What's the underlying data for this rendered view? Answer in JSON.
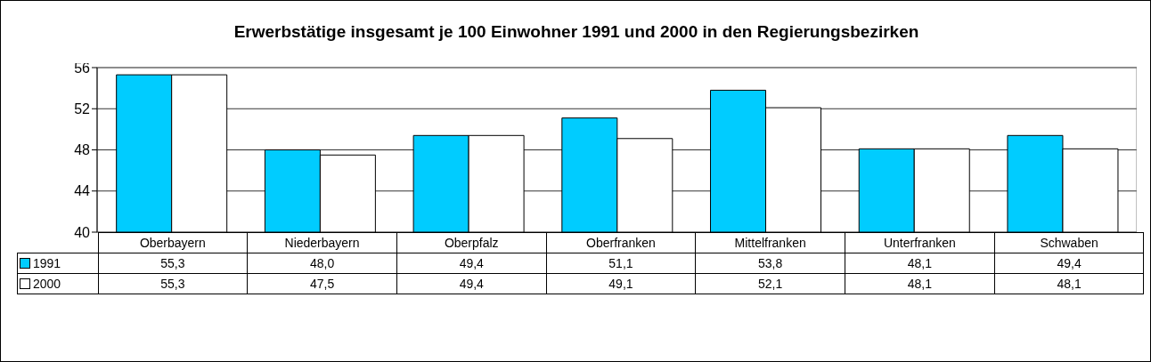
{
  "chart_data": {
    "type": "bar",
    "title": "Erwerbstätige insgesamt je 100 Einwohner 1991 und 2000 in den Regierungsbezirken",
    "categories": [
      "Oberbayern",
      "Niederbayern",
      "Oberpfalz",
      "Oberfranken",
      "Mittelfranken",
      "Unterfranken",
      "Schwaben"
    ],
    "series": [
      {
        "name": "1991",
        "color": "#00ccff",
        "values": [
          55.3,
          48.0,
          49.4,
          51.1,
          53.8,
          48.1,
          49.4
        ],
        "value_labels": [
          "55,3",
          "48,0",
          "49,4",
          "51,1",
          "53,8",
          "48,1",
          "49,4"
        ]
      },
      {
        "name": "2000",
        "color": "#ffffff",
        "values": [
          55.3,
          47.5,
          49.4,
          49.1,
          52.1,
          48.1,
          48.1
        ],
        "value_labels": [
          "55,3",
          "47,5",
          "49,4",
          "49,1",
          "52,1",
          "48,1",
          "48,1"
        ]
      }
    ],
    "legend": "bottom left",
    "ylim": [
      40,
      56
    ],
    "yticks": [
      40,
      44,
      48,
      52,
      56
    ],
    "grid": "y"
  }
}
